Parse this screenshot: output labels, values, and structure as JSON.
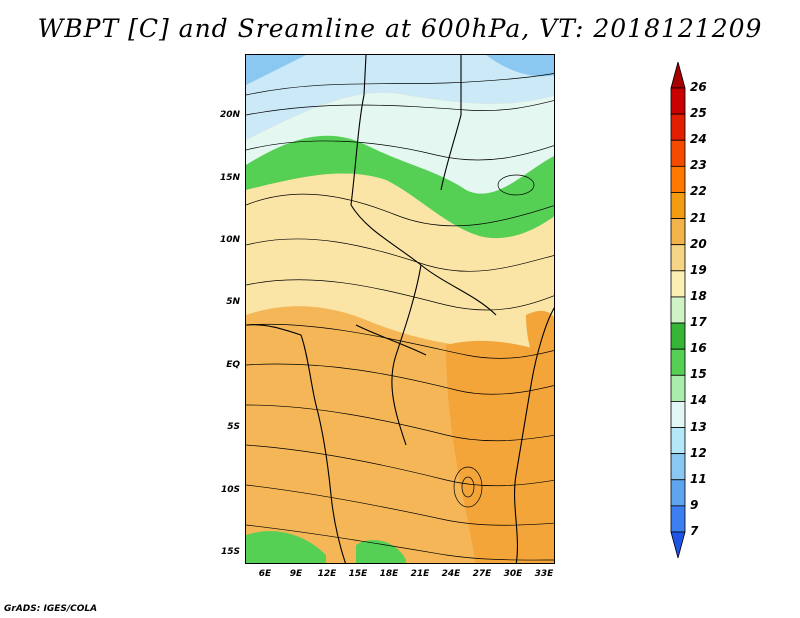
{
  "title": "WBPT [C] and Sreamline at 600hPa, VT: 2018121209",
  "footer": "GrADS: IGES/COLA",
  "lat_labels": [
    "20N",
    "15N",
    "10N",
    "5N",
    "EQ",
    "5S",
    "10S",
    "15S"
  ],
  "lon_labels": [
    "6E",
    "9E",
    "12E",
    "15E",
    "18E",
    "21E",
    "24E",
    "27E",
    "30E",
    "33E"
  ],
  "colorbar": {
    "levels": [
      "26",
      "25",
      "24",
      "23",
      "22",
      "21",
      "20",
      "19",
      "18",
      "17",
      "16",
      "15",
      "14",
      "13",
      "12",
      "11",
      "9",
      "7"
    ],
    "colors": [
      "#a50000",
      "#c80000",
      "#e11e00",
      "#f54b00",
      "#ff7800",
      "#f49b14",
      "#f1b34a",
      "#f6d586",
      "#fbf0b4",
      "#cff3c7",
      "#37b537",
      "#55d055",
      "#aaecab",
      "#e2f7f5",
      "#b4e8f7",
      "#8ac8f2",
      "#5fa5ee",
      "#3c7ff0",
      "#1e55e6"
    ]
  },
  "colors": {
    "cold": "#8ac8f2",
    "cool": "#e2f7f5",
    "green": "#55d055",
    "pale": "#fbf0b4",
    "tan": "#f1b34a",
    "orange": "#f49b14"
  }
}
